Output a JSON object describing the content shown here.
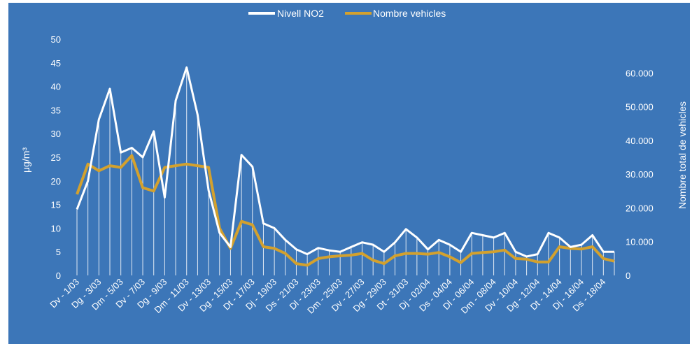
{
  "chart_data": {
    "type": "line",
    "title": "",
    "legend": [
      "Nivell NO2",
      "Nombre vehicles"
    ],
    "legend_position": "top",
    "colors": {
      "background": "#3c76b8",
      "no2": "#ffffff",
      "vehicles": "#d3a12e",
      "drop_lines": "#ffffff"
    },
    "y_left": {
      "label": "μg/m³",
      "ylim": [
        0,
        50
      ],
      "ticks": [
        "0",
        "5",
        "10",
        "15",
        "20",
        "25",
        "30",
        "35",
        "40",
        "45",
        "50"
      ]
    },
    "y_right": {
      "label": "Nombre total de vehicles",
      "ylim": [
        0,
        70000
      ],
      "ticks": [
        "0",
        "10.000",
        "20.000",
        "30.000",
        "40.000",
        "50.000",
        "60.000"
      ]
    },
    "x_tick_labels": [
      "Dv - 1/03",
      "Dg - 3/03",
      "Dm - 5/03",
      "Dv - 7/03",
      "Dg - 9/03",
      "Dm - 11/03",
      "Dv - 13/03",
      "Dg - 15/03",
      "Dt - 17/03",
      "Dj - 19/03",
      "Ds - 21/03",
      "Dl - 23/03",
      "Dm - 25/03",
      "Dv - 27/03",
      "Dg - 29/03",
      "Dt - 31/03",
      "Dj - 02/04",
      "Ds - 04/04",
      "Dl - 06/04",
      "Dm - 08/04",
      "Dv - 10/04",
      "Dg - 12/04",
      "Dt - 14/04",
      "Dj - 16/04",
      "Ds - 18/04"
    ],
    "series": [
      {
        "name": "Nivell NO2",
        "axis": "left",
        "values": [
          14,
          20,
          33,
          39.5,
          26,
          27,
          25,
          30.5,
          16.5,
          37,
          44,
          34,
          18,
          9,
          6,
          25.5,
          23,
          11,
          10,
          7.5,
          5.5,
          4.5,
          5.8,
          5.3,
          5,
          6,
          7,
          6.5,
          5,
          7,
          9.8,
          8,
          5.5,
          7.5,
          6.5,
          5,
          9,
          8.5,
          8,
          9,
          5,
          4,
          4.5,
          9,
          8,
          6,
          6.5,
          8.5,
          5,
          5
        ]
      },
      {
        "name": "Nombre vehicles",
        "axis": "right",
        "values": [
          24000,
          33000,
          31000,
          32500,
          32000,
          35500,
          26000,
          25000,
          32000,
          32500,
          33000,
          32500,
          32000,
          14000,
          8000,
          16000,
          15000,
          8500,
          8000,
          6500,
          3500,
          3000,
          5000,
          5500,
          5800,
          6000,
          6500,
          4500,
          3500,
          5800,
          6500,
          6500,
          6300,
          6800,
          5500,
          3800,
          6500,
          6800,
          7000,
          7500,
          5000,
          4800,
          4000,
          4000,
          8500,
          8000,
          7800,
          8500,
          5000,
          4200
        ]
      }
    ]
  }
}
